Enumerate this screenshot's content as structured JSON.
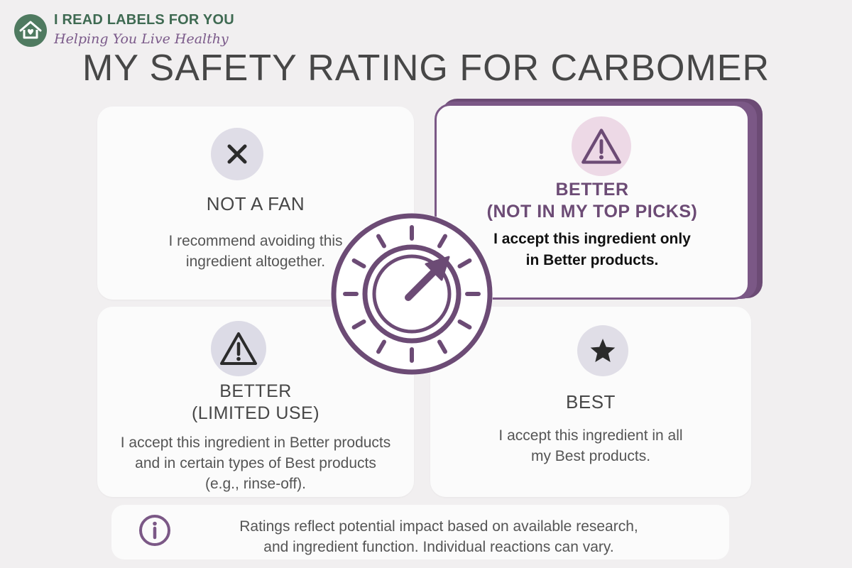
{
  "brand": {
    "name": "I READ LABELS FOR YOU",
    "tagline": "Helping You Live Healthy"
  },
  "title": "MY SAFETY RATING FOR CARBOMER",
  "cards": {
    "not_a_fan": {
      "icon": "x-icon",
      "heading": "NOT A FAN",
      "lines": [
        "I recommend avoiding this",
        "ingredient altogether."
      ]
    },
    "better_not_top": {
      "icon": "warning-icon",
      "heading_lines": [
        "BETTER",
        "(NOT IN MY TOP PICKS)"
      ],
      "lines": [
        "I accept this ingredient only",
        "in Better products."
      ],
      "selected": true
    },
    "better_limited": {
      "icon": "warning-icon",
      "heading_lines": [
        "BETTER",
        "(LIMITED USE)"
      ],
      "lines": [
        "I accept this ingredient in Better products",
        "and in certain types of Best products",
        "(e.g., rinse-off)."
      ]
    },
    "best": {
      "icon": "star-icon",
      "heading": "BEST",
      "lines": [
        "I accept this ingredient in all",
        "my Best products."
      ]
    }
  },
  "footer": {
    "icon": "info-icon",
    "lines": [
      "Ratings reflect potential impact based on available research,",
      "and ingredient function. Individual reactions can vary."
    ]
  },
  "colors": {
    "background": "#f1eff0",
    "card": "#fbfbfb",
    "accent_purple": "#6c4b75",
    "brand_green": "#3f6a52",
    "text": "#474747"
  }
}
